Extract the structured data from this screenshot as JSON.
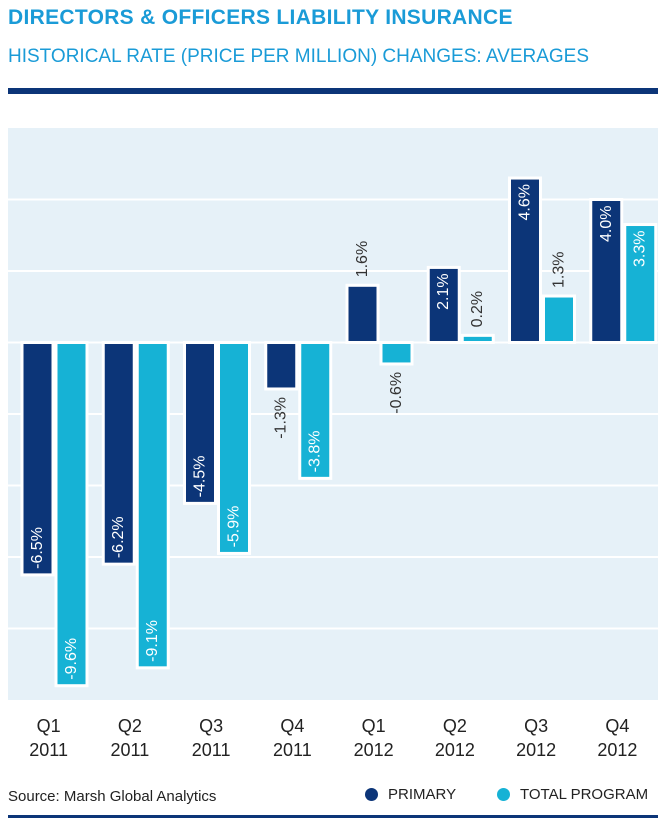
{
  "header": {
    "title": "DIRECTORS & OFFICERS LIABILITY INSURANCE",
    "subtitle": "HISTORICAL RATE (PRICE PER MILLION) CHANGES: AVERAGES"
  },
  "footer": {
    "source": "Source: Marsh Global Analytics"
  },
  "colors": {
    "primary": "#0c3578",
    "total_program": "#16b2d5",
    "title": "#1a9bd7",
    "plot_bg": "#e6f1f8",
    "grid": "#ffffff"
  },
  "chart_data": {
    "type": "bar",
    "categories": [
      [
        "Q1",
        "2011"
      ],
      [
        "Q2",
        "2011"
      ],
      [
        "Q3",
        "2011"
      ],
      [
        "Q4",
        "2011"
      ],
      [
        "Q1",
        "2012"
      ],
      [
        "Q2",
        "2012"
      ],
      [
        "Q3",
        "2012"
      ],
      [
        "Q4",
        "2012"
      ]
    ],
    "series": [
      {
        "name": "PRIMARY",
        "values": [
          -6.5,
          -6.2,
          -4.5,
          -1.3,
          1.6,
          2.1,
          4.6,
          4.0
        ],
        "labels": [
          "-6.5%",
          "-6.2%",
          "-4.5%",
          "-1.3%",
          "1.6%",
          "2.1%",
          "4.6%",
          "4.0%"
        ]
      },
      {
        "name": "TOTAL PROGRAM",
        "values": [
          -9.6,
          -9.1,
          -5.9,
          -3.8,
          -0.6,
          0.2,
          1.3,
          3.3
        ],
        "labels": [
          "-9.6%",
          "-9.1%",
          "-5.9%",
          "-3.8%",
          "-0.6%",
          "0.2%",
          "1.3%",
          "3.3%"
        ]
      }
    ],
    "ylim": [
      -10,
      6
    ],
    "grid": true,
    "legend": "bottom-right"
  }
}
